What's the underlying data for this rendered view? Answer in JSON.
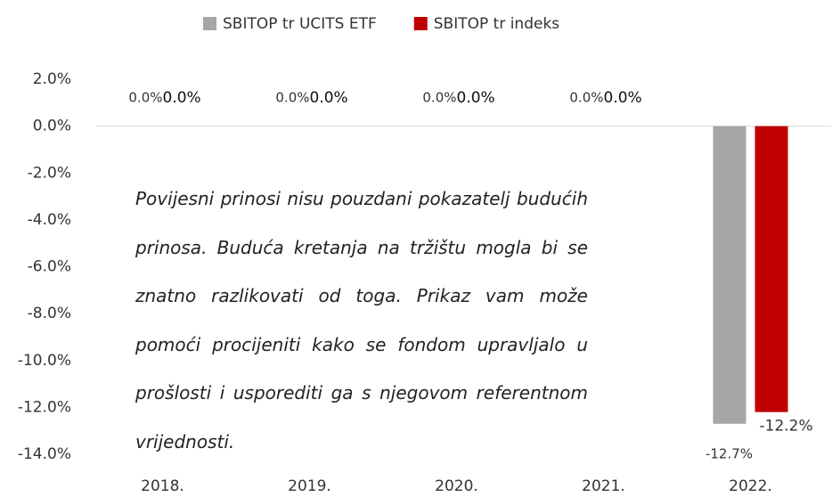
{
  "chart_data": {
    "type": "bar",
    "categories": [
      "2018.",
      "2019.",
      "2020.",
      "2021.",
      "2022."
    ],
    "series": [
      {
        "name": "SBITOP tr UCITS ETF",
        "color": "#a6a6a6",
        "values": [
          0,
          0,
          0,
          0,
          -12.7
        ],
        "value_labels": [
          "0.0%",
          "0.0%",
          "0.0%",
          "0.0%",
          "-12.7%"
        ]
      },
      {
        "name": "SBITOP tr indeks",
        "color": "#c00000",
        "values": [
          0,
          0,
          0,
          0,
          -12.2
        ],
        "value_labels": [
          "0.0%",
          "0.0%",
          "0.0%",
          "0.0%",
          "-12.2%"
        ]
      }
    ],
    "ylim": [
      -14,
      2
    ],
    "yticks": [
      {
        "value": 2,
        "label": "2.0%"
      },
      {
        "value": 0,
        "label": "0.0%"
      },
      {
        "value": -2,
        "label": "-2.0%"
      },
      {
        "value": -4,
        "label": "-4.0%"
      },
      {
        "value": -6,
        "label": "-6.0%"
      },
      {
        "value": -8,
        "label": "-8.0%"
      },
      {
        "value": -10,
        "label": "-10.0%"
      },
      {
        "value": -12,
        "label": "-12.0%"
      },
      {
        "value": -14,
        "label": "-14.0%"
      }
    ],
    "legend": "top",
    "annotation": "Povijesni prinosi nisu pouzdani pokazatelj budućih prinosa. Buduća kretanja na tržištu mogla bi se znatno razlikovati od toga. Prikaz vam može pomoći procijeniti kako se fondom upravljalo u prošlosti i usporediti ga s njegovom referentnom vrijednosti."
  }
}
